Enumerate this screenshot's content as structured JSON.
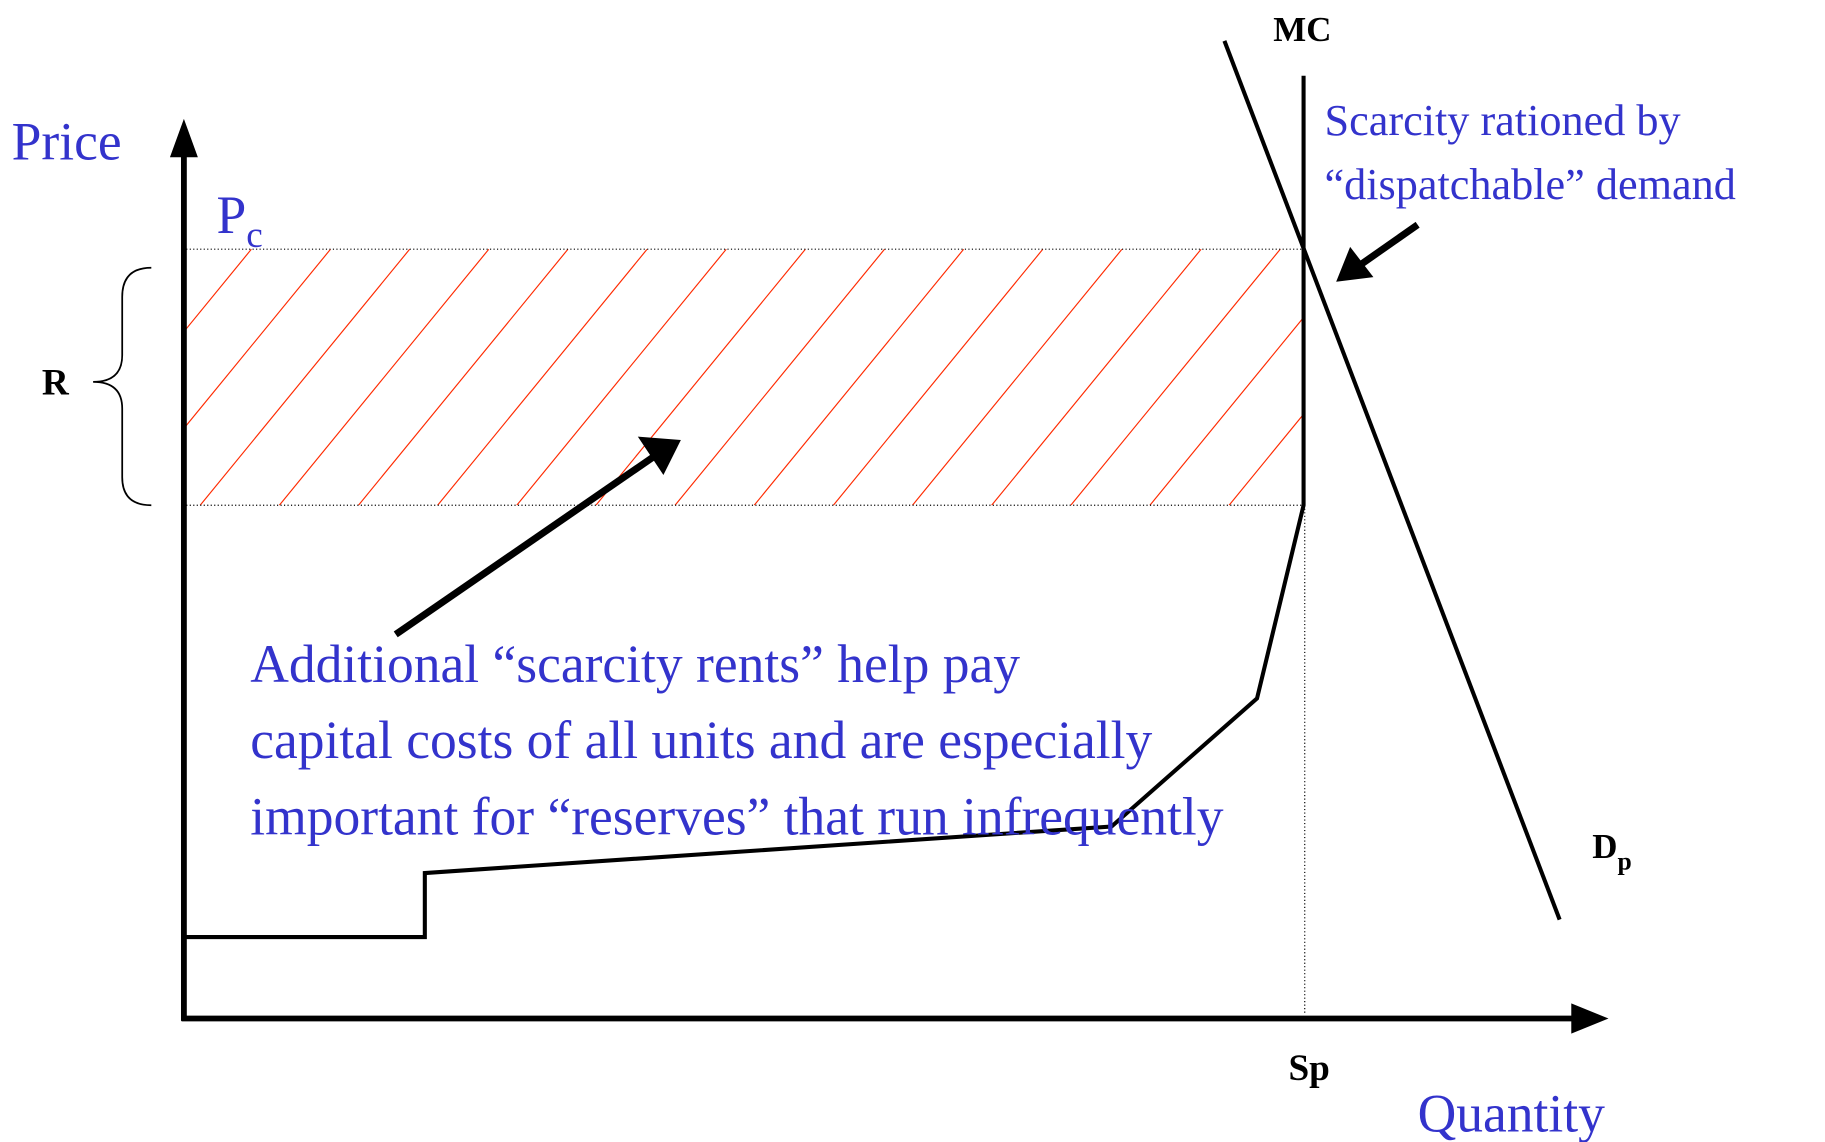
{
  "labels": {
    "mc": "MC",
    "price": "Price",
    "pc": {
      "main": "P",
      "sub": "c"
    },
    "r": "R",
    "scarcity_note": [
      "Scarcity rationed by",
      "“dispatchable” demand"
    ],
    "rents_note": [
      "Additional “scarcity rents” help pay",
      "capital costs of all units and are especially",
      "important for “reserves” that run infrequently"
    ],
    "dp": {
      "main": "D",
      "sub": "p"
    },
    "sp": "Sp",
    "quantity": "Quantity"
  }
}
